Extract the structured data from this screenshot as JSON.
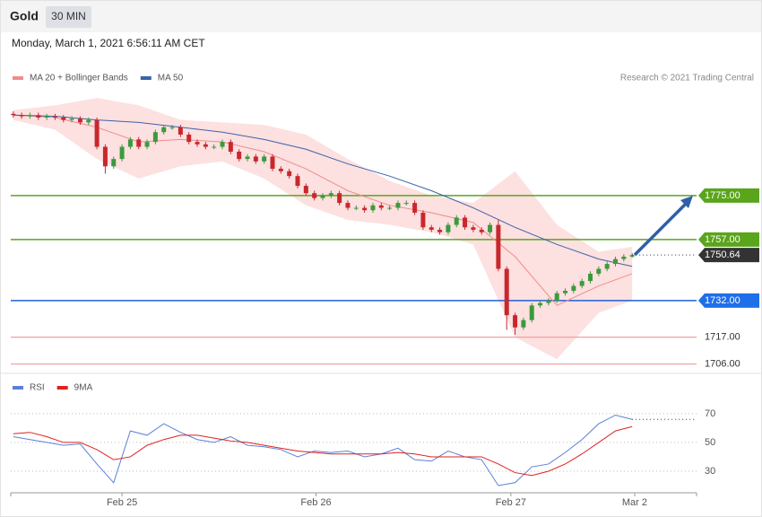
{
  "header": {
    "symbol": "Gold",
    "interval": "30 MIN",
    "timestamp": "Monday, March 1, 2021 6:56:11 AM CET",
    "credit": "Research © 2021 Trading Central"
  },
  "chart_data": [
    {
      "type": "candlestick",
      "open": [
        1808.5,
        1808,
        1807.5,
        1808,
        1807,
        1807.5,
        1807,
        1806,
        1806.5,
        1805,
        1806,
        1795,
        1787,
        1790,
        1795,
        1798,
        1795,
        1797,
        1801,
        1803,
        1803,
        1800,
        1797,
        1796,
        1795,
        1795,
        1797,
        1793,
        1790,
        1791,
        1789,
        1791,
        1786,
        1785,
        1783,
        1779,
        1776,
        1774,
        1775,
        1776,
        1772,
        1770,
        1770,
        1769,
        1771,
        1770,
        1770,
        1772,
        1772,
        1768,
        1762,
        1761,
        1760,
        1763,
        1766,
        1762,
        1761,
        1760,
        1763,
        1745,
        1726,
        1721,
        1724,
        1730,
        1731,
        1732,
        1735,
        1736,
        1738,
        1740,
        1743,
        1745,
        1747,
        1749,
        1750
      ],
      "high": [
        1809.5,
        1809,
        1809,
        1809,
        1808.5,
        1808.5,
        1808,
        1807.5,
        1807.5,
        1807,
        1807,
        1796,
        1791,
        1796,
        1799,
        1799,
        1798,
        1802,
        1804,
        1804,
        1804,
        1801,
        1798,
        1797,
        1796,
        1798,
        1798,
        1794,
        1792,
        1792,
        1792,
        1792,
        1787,
        1786,
        1784,
        1780,
        1777,
        1776,
        1777,
        1777,
        1773,
        1771,
        1771,
        1772,
        1772,
        1771,
        1773,
        1773,
        1773,
        1769,
        1763,
        1762,
        1764,
        1767,
        1767,
        1763,
        1762,
        1764,
        1765,
        1746,
        1727,
        1725,
        1731,
        1732,
        1733,
        1736,
        1737,
        1739,
        1741,
        1744,
        1746,
        1748,
        1750,
        1751,
        1751.5
      ],
      "low": [
        1807,
        1806.5,
        1806.5,
        1806,
        1806,
        1806,
        1805,
        1805,
        1804,
        1804,
        1794,
        1784,
        1786,
        1789,
        1794,
        1794,
        1794,
        1796,
        1800,
        1802,
        1799,
        1796,
        1795,
        1794,
        1794,
        1794,
        1792,
        1789,
        1789,
        1788,
        1788,
        1785,
        1784,
        1782,
        1778,
        1775,
        1773,
        1773,
        1774,
        1771,
        1769,
        1769,
        1768,
        1768,
        1769,
        1769,
        1769,
        1771,
        1767,
        1761,
        1760,
        1759,
        1759,
        1762,
        1761,
        1760,
        1759,
        1759,
        1744,
        1720,
        1718,
        1720,
        1723,
        1729,
        1730,
        1731,
        1734,
        1735,
        1737,
        1739,
        1742,
        1744,
        1746,
        1748,
        1749.5
      ],
      "close": [
        1808,
        1807.5,
        1808,
        1807,
        1807.5,
        1807,
        1806,
        1806.5,
        1805,
        1806,
        1795,
        1787,
        1790,
        1795,
        1798,
        1795,
        1797,
        1801,
        1803,
        1803,
        1800,
        1797,
        1796,
        1795,
        1795,
        1797,
        1793,
        1790,
        1791,
        1789,
        1791,
        1786,
        1785,
        1783,
        1779,
        1776,
        1774,
        1775,
        1776,
        1772,
        1770,
        1770,
        1769,
        1771,
        1770,
        1770,
        1772,
        1772,
        1768,
        1762,
        1761,
        1760,
        1763,
        1766,
        1762,
        1761,
        1760,
        1763,
        1745,
        1726,
        1721,
        1724,
        1730,
        1731,
        1732,
        1735,
        1736,
        1738,
        1740,
        1743,
        1745,
        1747,
        1749,
        1750,
        1750.64
      ],
      "up_color": "#3c9a3c",
      "down_color": "#c8282d",
      "xlim": [
        -0.3,
        81.7
      ],
      "ylim": [
        1704,
        1818
      ],
      "overlays": [
        {
          "name": "MA 20 + Bollinger Bands",
          "color": "#f08c8c",
          "band_color": "#fde0e0",
          "x": [
            0,
            5,
            10,
            15,
            20,
            25,
            30,
            35,
            40,
            45,
            50,
            55,
            60,
            65,
            70,
            74
          ],
          "values": [
            1808,
            1807,
            1803,
            1797,
            1798,
            1797,
            1793,
            1786,
            1777,
            1771,
            1768,
            1764,
            1750,
            1730,
            1738,
            1743
          ],
          "band_upper": [
            1810,
            1812,
            1815,
            1812,
            1806,
            1805,
            1804,
            1800,
            1790,
            1781,
            1775,
            1772,
            1785,
            1763,
            1752,
            1754
          ],
          "band_lower": [
            1806,
            1802,
            1790,
            1782,
            1787,
            1789,
            1782,
            1771,
            1765,
            1763,
            1760,
            1755,
            1717,
            1708,
            1727,
            1732
          ]
        },
        {
          "name": "MA 50",
          "color": "#3b63a8",
          "x": [
            0,
            5,
            10,
            15,
            20,
            25,
            30,
            35,
            40,
            45,
            50,
            55,
            60,
            65,
            70,
            74
          ],
          "values": [
            1808,
            1807.5,
            1806,
            1805,
            1803,
            1801,
            1798,
            1794,
            1788,
            1783,
            1777,
            1770,
            1762,
            1755,
            1749,
            1746
          ]
        }
      ],
      "levels": [
        {
          "value": 1775,
          "label": "1775.00",
          "color": "#5aa51c",
          "label_fill": "#5aa51c"
        },
        {
          "value": 1757,
          "label": "1757.00",
          "color": "#5aa51c",
          "label_fill": "#5aa51c"
        },
        {
          "value": 1732,
          "label": "1732.00",
          "color": "#1f5fd6",
          "label_fill": "#1f6fe8"
        },
        {
          "value": 1717,
          "label": "1717.00",
          "color": "#f2a0a0"
        },
        {
          "value": 1706,
          "label": "1706.00",
          "color": "#f2a0a0"
        }
      ],
      "last_price": {
        "value": 1750.64,
        "label": "1750.64",
        "color": "#333333"
      }
    },
    {
      "type": "line",
      "series": [
        {
          "name": "RSI",
          "color": "#5b80d8",
          "x": [
            0,
            2,
            4,
            6,
            8,
            10,
            12,
            14,
            16,
            18,
            20,
            22,
            24,
            26,
            28,
            30,
            32,
            34,
            36,
            38,
            40,
            42,
            44,
            46,
            48,
            50,
            52,
            54,
            56,
            58,
            60,
            62,
            64,
            66,
            68,
            70,
            72,
            74
          ],
          "values": [
            54,
            52,
            50,
            48,
            49,
            35,
            22,
            58,
            55,
            63,
            57,
            52,
            50,
            54,
            48,
            47,
            45,
            40,
            44,
            43,
            44,
            40,
            42,
            46,
            38,
            37,
            44,
            40,
            38,
            20,
            22,
            33,
            35,
            43,
            52,
            63,
            69,
            66
          ]
        },
        {
          "name": "9MA",
          "color": "#e02020",
          "x": [
            0,
            2,
            4,
            6,
            8,
            10,
            12,
            14,
            16,
            18,
            20,
            22,
            24,
            26,
            28,
            30,
            32,
            34,
            36,
            38,
            40,
            42,
            44,
            46,
            48,
            50,
            52,
            54,
            56,
            58,
            60,
            62,
            64,
            66,
            68,
            70,
            72,
            74
          ],
          "values": [
            56,
            57,
            54,
            50,
            50,
            45,
            38,
            40,
            48,
            52,
            55,
            55,
            53,
            51,
            50,
            48,
            46,
            44,
            43,
            42,
            42,
            42,
            42,
            43,
            42,
            40,
            40,
            40,
            40,
            35,
            29,
            27,
            30,
            35,
            42,
            50,
            58,
            61
          ]
        }
      ],
      "xlim": [
        -0.3,
        81.7
      ],
      "ylim": [
        15,
        98
      ],
      "yticks": [
        30,
        50,
        70
      ],
      "xticks": [
        {
          "value": 13,
          "label": "Feb 25"
        },
        {
          "value": 36.2,
          "label": "Feb 26"
        },
        {
          "value": 59.5,
          "label": "Feb 27"
        },
        {
          "value": 74.3,
          "label": "Mar 2"
        }
      ]
    }
  ]
}
